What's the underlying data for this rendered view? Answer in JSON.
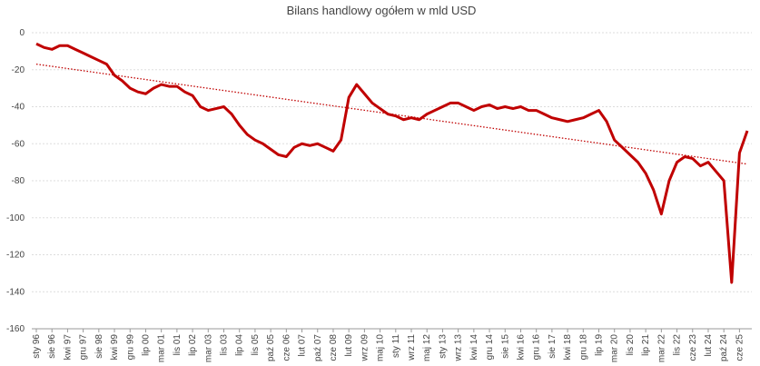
{
  "chart_data": {
    "type": "line",
    "title": "Bilans handlowy ogółem w mld USD",
    "categories": [
      "sty 96",
      null,
      "sie 96",
      null,
      "kwi 97",
      null,
      "gru 97",
      null,
      "sie 98",
      null,
      "kwi 99",
      null,
      "gru 99",
      null,
      "lip 00",
      null,
      "mar 01",
      null,
      "lis 01",
      null,
      "lip 02",
      null,
      "mar 03",
      null,
      "lis 03",
      null,
      "lip 04",
      null,
      "lis 05",
      null,
      "paź 05",
      null,
      "cze 06",
      null,
      "lut 07",
      null,
      "paź 07",
      null,
      "cze 08",
      null,
      "lut 09",
      null,
      "wrz 09",
      null,
      "maj 10",
      null,
      "sty 11",
      null,
      "wrz 11",
      null,
      "maj 12",
      null,
      "sty 13",
      null,
      "wrz 13",
      null,
      "kwi 14",
      null,
      "gru 14",
      null,
      "sie 15",
      null,
      "kwi 16",
      null,
      "gru 16",
      null,
      "sie 17",
      null,
      "kwi 18",
      null,
      "gru 18",
      null,
      "lip 19",
      null,
      "mar 20",
      null,
      "lis 20",
      null,
      "lip 21",
      null,
      "mar 22",
      null,
      "lis 22",
      null,
      "cze 23",
      null,
      "lut 24",
      null,
      "paź 24",
      null,
      "cze 25",
      null
    ],
    "series": [
      {
        "color": "#c00000",
        "values": [
          -6,
          -8,
          -9,
          -7,
          -7,
          -9,
          -11,
          -13,
          -15,
          -17,
          -23,
          -26,
          -30,
          -32,
          -33,
          -30,
          -28,
          -29,
          -29,
          -32,
          -34,
          -40,
          -42,
          -41,
          -40,
          -44,
          -50,
          -55,
          -58,
          -60,
          -63,
          -66,
          -67,
          -62,
          -60,
          -61,
          -60,
          -62,
          -64,
          -58,
          -35,
          -28,
          -33,
          -38,
          -41,
          -44,
          -45,
          -47,
          -46,
          -47,
          -44,
          -42,
          -40,
          -38,
          -38,
          -40,
          -42,
          -40,
          -39,
          -41,
          -40,
          -41,
          -40,
          -42,
          -42,
          -44,
          -46,
          -47,
          -48,
          -47,
          -46,
          -44,
          -42,
          -48,
          -58,
          -62,
          -66,
          -70,
          -76,
          -85,
          -98,
          -80,
          -70,
          -67,
          -68,
          -72,
          -70,
          -75,
          -80,
          -135,
          -65,
          -53
        ]
      }
    ],
    "trend": {
      "color": "#c00000",
      "start": -17,
      "end": -71
    },
    "ylim": [
      -160,
      0
    ],
    "yticks": [
      -160,
      -140,
      -120,
      -100,
      -80,
      -60,
      -40,
      -20,
      0
    ],
    "grid": true
  }
}
